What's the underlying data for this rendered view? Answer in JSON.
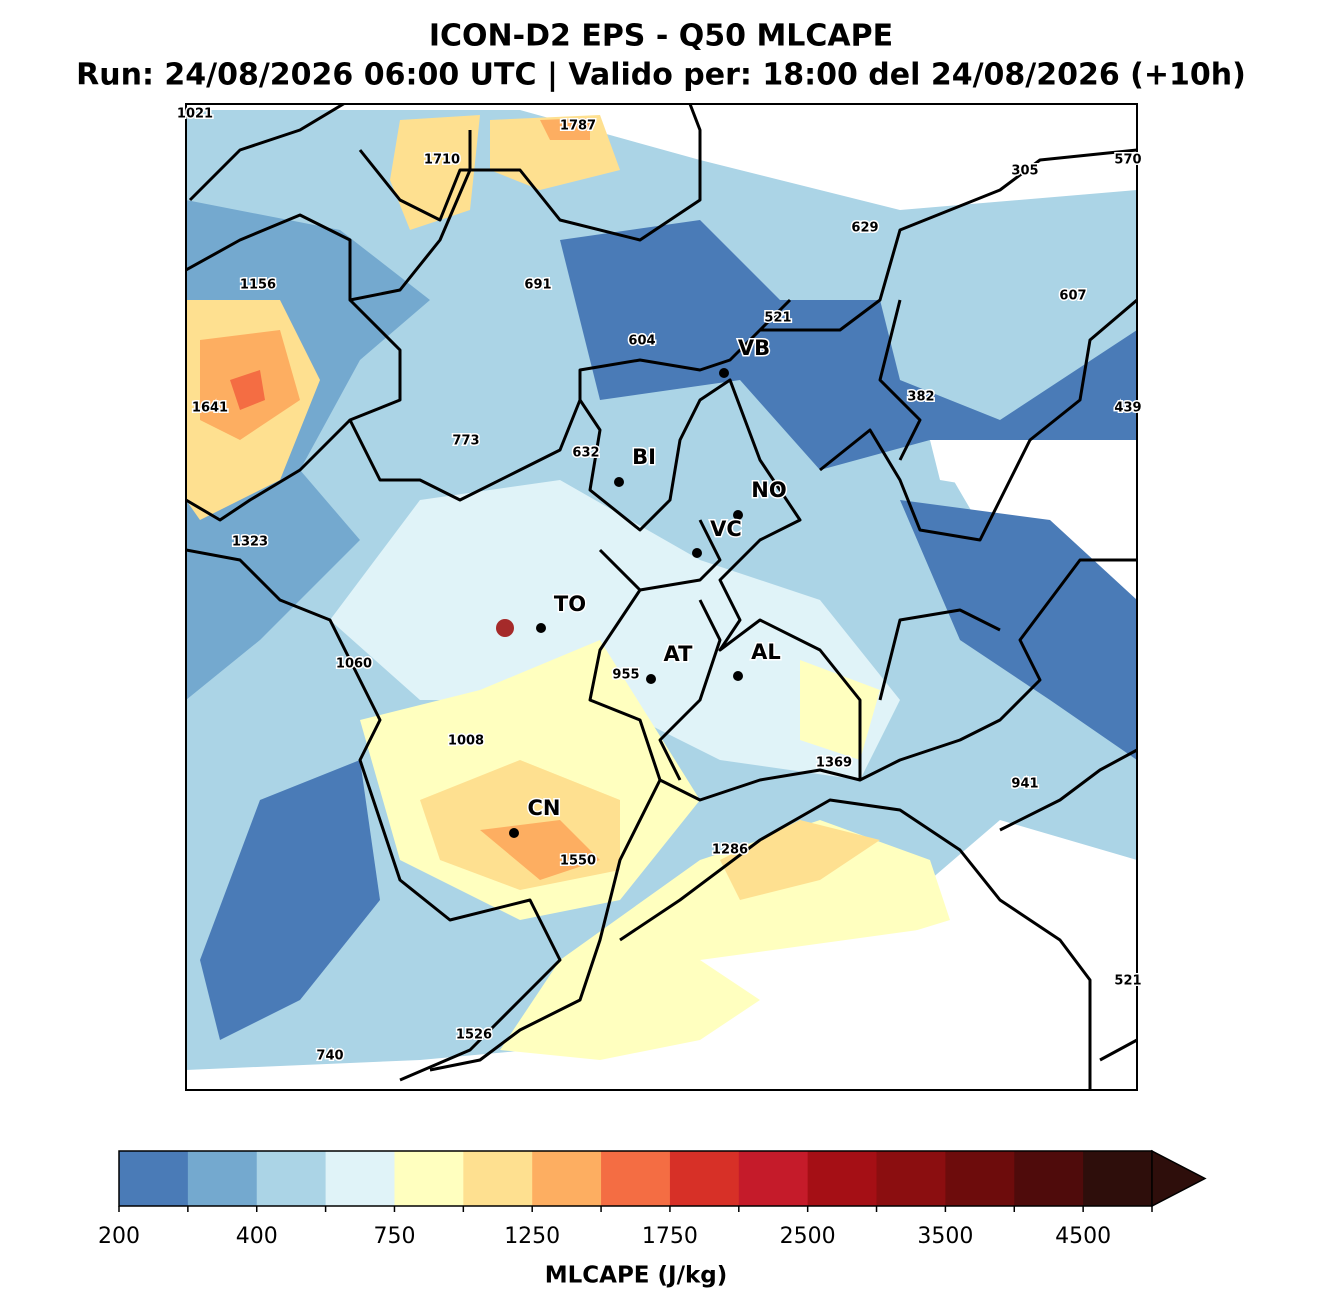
{
  "header": {
    "title": "ICON-D2 EPS - Q50 MLCAPE",
    "subtitle": "Run: 24/08/2026 06:00 UTC | Valido per: 18:00 del 24/08/2026 (+10h)"
  },
  "map": {
    "cape_labels": [
      1021,
      1787,
      1710,
      305,
      570,
      629,
      1156,
      691,
      607,
      521,
      604,
      1641,
      382,
      439,
      773,
      632,
      1323,
      1060,
      955,
      1008,
      1369,
      941,
      1550,
      1286,
      521,
      1526,
      740
    ],
    "cities": [
      "VB",
      "BI",
      "NO",
      "VC",
      "TO",
      "AT",
      "AL",
      "CN"
    ]
  },
  "colorbar": {
    "label": "MLCAPE (J/kg)",
    "bounds": [
      200,
      300,
      400,
      500,
      750,
      1000,
      1250,
      1500,
      1750,
      2000,
      2500,
      3000,
      3500,
      4000,
      4500,
      5000
    ],
    "ticks": [
      200,
      400,
      750,
      1250,
      1750,
      2500,
      3500,
      4500
    ],
    "colors": [
      "#4a7bb7",
      "#74a9cf",
      "#abd4e6",
      "#e0f3f8",
      "#ffffbf",
      "#fee090",
      "#fdae61",
      "#f46d43",
      "#d73027",
      "#c51b2a",
      "#a50f15",
      "#8b0e10",
      "#6d0c0c",
      "#4f0b0b",
      "#2e0e0b"
    ],
    "extend_color": "#2e0e0b"
  }
}
